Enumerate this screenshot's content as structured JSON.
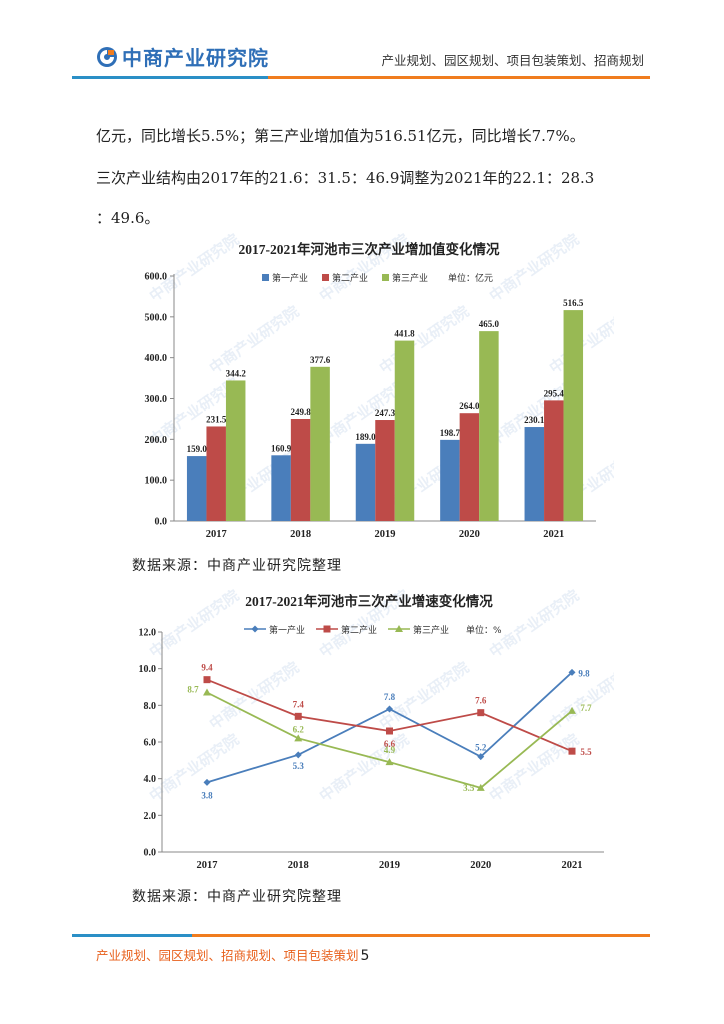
{
  "header": {
    "logo_text": "中商产业研究院",
    "tagline": "产业规划、园区规划、项目包装策划、招商规划"
  },
  "body": {
    "lines": [
      "亿元，同比增长5.5%；第三产业增加值为516.51亿元，同比增长7.7%。",
      "三次产业结构由2017年的21.6：31.5：46.9调整为2021年的22.1：28.3",
      "：49.6。"
    ]
  },
  "watermark_text": "中商产业研究院",
  "chart_data": [
    {
      "type": "bar",
      "title": "2017-2021年河池市三次产业增加值变化情况",
      "categories": [
        "2017",
        "2018",
        "2019",
        "2020",
        "2021"
      ],
      "series": [
        {
          "name": "第一产业",
          "values": [
            159.0,
            160.9,
            189.0,
            198.7,
            230.1
          ],
          "labels": [
            "159.0",
            "160.9",
            "189.0",
            "198.7",
            "230.1"
          ],
          "color": "#4a7ebb"
        },
        {
          "name": "第二产业",
          "values": [
            231.5,
            249.8,
            247.3,
            264.0,
            295.4
          ],
          "labels": [
            "231.5",
            "249.8",
            "247.3",
            "264.0",
            "295.4"
          ],
          "color": "#be4b48"
        },
        {
          "name": "第三产业",
          "values": [
            344.2,
            377.6,
            441.8,
            465.0,
            516.5
          ],
          "labels": [
            "344.2",
            "377.6",
            "441.8",
            "465.0",
            "516.5"
          ],
          "color": "#98b954"
        }
      ],
      "unit_label": "单位：亿元",
      "y_ticks": [
        "0.0",
        "100.0",
        "200.0",
        "300.0",
        "400.0",
        "500.0",
        "600.0"
      ],
      "ylim": [
        0,
        600
      ],
      "grid": false,
      "legend": "top",
      "source": "数据来源：中商产业研究院整理"
    },
    {
      "type": "line",
      "title": "2017-2021年河池市三次产业增速变化情况",
      "categories": [
        "2017",
        "2018",
        "2019",
        "2020",
        "2021"
      ],
      "series": [
        {
          "name": "第一产业",
          "values": [
            3.8,
            5.3,
            7.8,
            5.2,
            9.8
          ],
          "labels": [
            "3.8",
            "5.3",
            "7.8",
            "5.2",
            "9.8"
          ],
          "color": "#4a7ebb",
          "marker": "diamond"
        },
        {
          "name": "第二产业",
          "values": [
            9.4,
            7.4,
            6.6,
            7.6,
            5.5
          ],
          "labels": [
            "9.4",
            "7.4",
            "6.6",
            "7.6",
            "5.5"
          ],
          "color": "#be4b48",
          "marker": "square"
        },
        {
          "name": "第三产业",
          "values": [
            8.7,
            6.2,
            4.9,
            3.5,
            7.7
          ],
          "labels": [
            "8.7",
            "6.2",
            "4.9",
            "3.5",
            "7.7"
          ],
          "color": "#98b954",
          "marker": "triangle"
        }
      ],
      "unit_label": "单位：%",
      "y_ticks": [
        "0.0",
        "2.0",
        "4.0",
        "6.0",
        "8.0",
        "10.0",
        "12.0"
      ],
      "ylim": [
        0,
        12
      ],
      "grid": false,
      "legend": "top",
      "source": "数据来源：中商产业研究院整理"
    }
  ],
  "footer": {
    "text": "产业规划、园区规划、招商规划、项目包装策划",
    "page_number": "5"
  }
}
